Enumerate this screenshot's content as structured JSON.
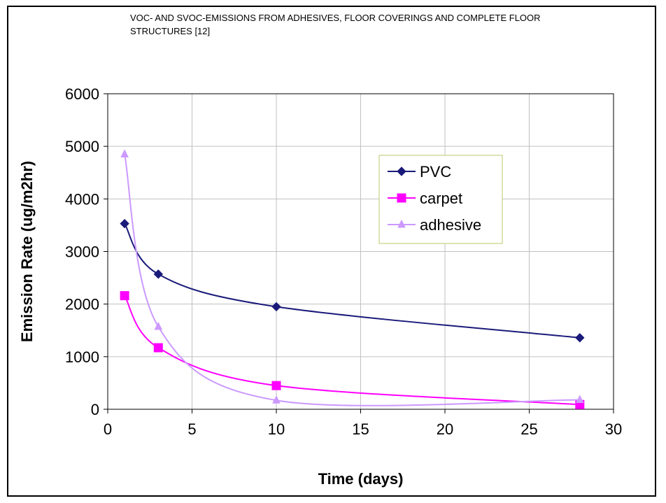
{
  "chart_data": {
    "type": "line",
    "title": "VOC- AND SVOC-EMISSIONS FROM ADHESIVES, FLOOR COVERINGS AND COMPLETE FLOOR STRUCTURES [12]",
    "xlabel": "Time (days)",
    "ylabel": "Emission Rate (ug/m2hr)",
    "xlim": [
      0,
      30
    ],
    "ylim": [
      0,
      6000
    ],
    "xticks": [
      0,
      5,
      10,
      15,
      20,
      25,
      30
    ],
    "yticks": [
      0,
      1000,
      2000,
      3000,
      4000,
      5000,
      6000
    ],
    "grid": true,
    "smoothed": true,
    "legend_position": "top-right",
    "series": [
      {
        "name": "PVC",
        "color": "#1a1a7a",
        "marker": "diamond",
        "x": [
          1,
          3,
          10,
          28
        ],
        "y": [
          3530,
          2570,
          1950,
          1360
        ]
      },
      {
        "name": "carpet",
        "color": "#ff00ff",
        "marker": "square",
        "x": [
          1,
          3,
          10,
          28
        ],
        "y": [
          2160,
          1170,
          450,
          90
        ]
      },
      {
        "name": "adhesive",
        "color": "#cc99ff",
        "marker": "triangle",
        "x": [
          1,
          3,
          10,
          28
        ],
        "y": [
          4850,
          1570,
          170,
          180
        ]
      }
    ]
  }
}
